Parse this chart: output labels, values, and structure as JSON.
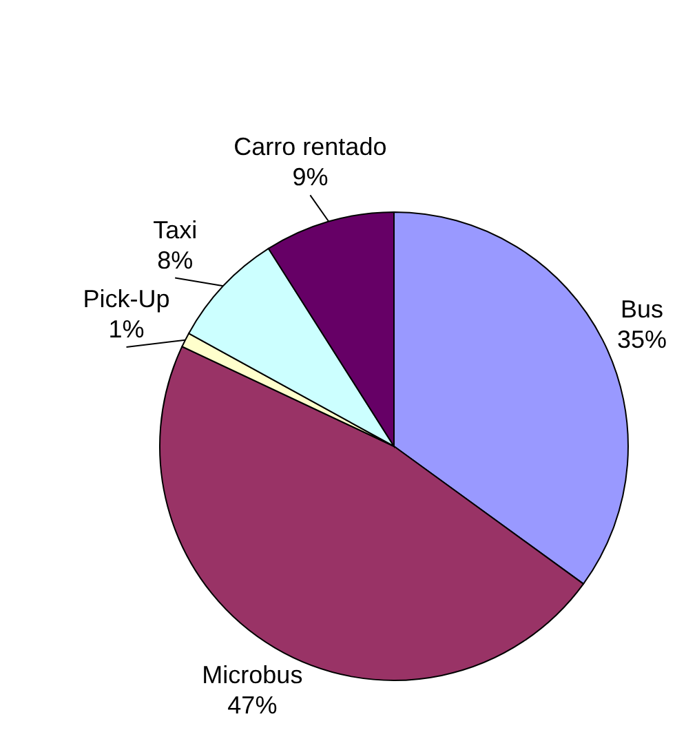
{
  "chart_data": {
    "type": "pie",
    "categories": [
      "Bus",
      "Microbus",
      "Pick-Up",
      "Taxi",
      "Carro rentado"
    ],
    "values": [
      35,
      47,
      1,
      8,
      9
    ],
    "value_labels": [
      "35%",
      "47%",
      "1%",
      "8%",
      "9%"
    ],
    "colors": [
      "#9999ff",
      "#993366",
      "#ffffcc",
      "#ccffff",
      "#660066"
    ]
  }
}
